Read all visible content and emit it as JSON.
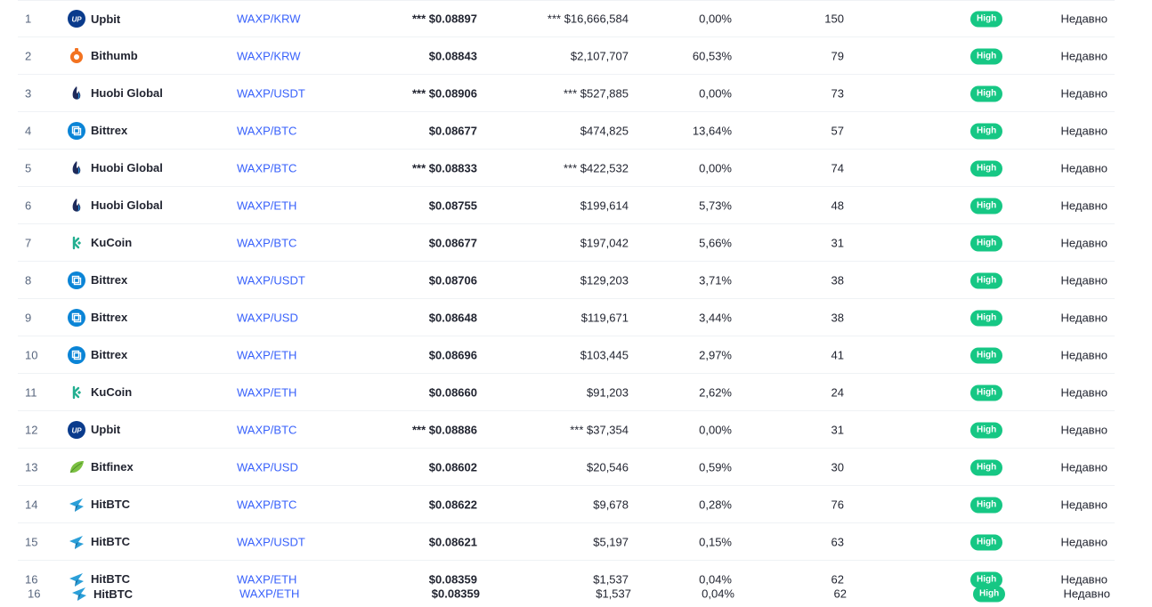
{
  "rows": [
    {
      "rank": "1",
      "exchange": "Upbit",
      "icon": "upbit-icon",
      "pair": "WAXP/KRW",
      "price": "*** $0.08897",
      "volume": "*** $16,666,584",
      "pct": "0,00%",
      "score": "150",
      "liquidity": "High",
      "updated": "Недавно"
    },
    {
      "rank": "2",
      "exchange": "Bithumb",
      "icon": "bithumb-icon",
      "pair": "WAXP/KRW",
      "price": "$0.08843",
      "volume": "$2,107,707",
      "pct": "60,53%",
      "score": "79",
      "liquidity": "High",
      "updated": "Недавно"
    },
    {
      "rank": "3",
      "exchange": "Huobi Global",
      "icon": "huobi-icon",
      "pair": "WAXP/USDT",
      "price": "*** $0.08906",
      "volume": "*** $527,885",
      "pct": "0,00%",
      "score": "73",
      "liquidity": "High",
      "updated": "Недавно"
    },
    {
      "rank": "4",
      "exchange": "Bittrex",
      "icon": "bittrex-icon",
      "pair": "WAXP/BTC",
      "price": "$0.08677",
      "volume": "$474,825",
      "pct": "13,64%",
      "score": "57",
      "liquidity": "High",
      "updated": "Недавно"
    },
    {
      "rank": "5",
      "exchange": "Huobi Global",
      "icon": "huobi-icon",
      "pair": "WAXP/BTC",
      "price": "*** $0.08833",
      "volume": "*** $422,532",
      "pct": "0,00%",
      "score": "74",
      "liquidity": "High",
      "updated": "Недавно"
    },
    {
      "rank": "6",
      "exchange": "Huobi Global",
      "icon": "huobi-icon",
      "pair": "WAXP/ETH",
      "price": "$0.08755",
      "volume": "$199,614",
      "pct": "5,73%",
      "score": "48",
      "liquidity": "High",
      "updated": "Недавно"
    },
    {
      "rank": "7",
      "exchange": "KuCoin",
      "icon": "kucoin-icon",
      "pair": "WAXP/BTC",
      "price": "$0.08677",
      "volume": "$197,042",
      "pct": "5,66%",
      "score": "31",
      "liquidity": "High",
      "updated": "Недавно"
    },
    {
      "rank": "8",
      "exchange": "Bittrex",
      "icon": "bittrex-icon",
      "pair": "WAXP/USDT",
      "price": "$0.08706",
      "volume": "$129,203",
      "pct": "3,71%",
      "score": "38",
      "liquidity": "High",
      "updated": "Недавно"
    },
    {
      "rank": "9",
      "exchange": "Bittrex",
      "icon": "bittrex-icon",
      "pair": "WAXP/USD",
      "price": "$0.08648",
      "volume": "$119,671",
      "pct": "3,44%",
      "score": "38",
      "liquidity": "High",
      "updated": "Недавно"
    },
    {
      "rank": "10",
      "exchange": "Bittrex",
      "icon": "bittrex-icon",
      "pair": "WAXP/ETH",
      "price": "$0.08696",
      "volume": "$103,445",
      "pct": "2,97%",
      "score": "41",
      "liquidity": "High",
      "updated": "Недавно"
    },
    {
      "rank": "11",
      "exchange": "KuCoin",
      "icon": "kucoin-icon",
      "pair": "WAXP/ETH",
      "price": "$0.08660",
      "volume": "$91,203",
      "pct": "2,62%",
      "score": "24",
      "liquidity": "High",
      "updated": "Недавно"
    },
    {
      "rank": "12",
      "exchange": "Upbit",
      "icon": "upbit-icon",
      "pair": "WAXP/BTC",
      "price": "*** $0.08886",
      "volume": "*** $37,354",
      "pct": "0,00%",
      "score": "31",
      "liquidity": "High",
      "updated": "Недавно"
    },
    {
      "rank": "13",
      "exchange": "Bitfinex",
      "icon": "bitfinex-icon",
      "pair": "WAXP/USD",
      "price": "$0.08602",
      "volume": "$20,546",
      "pct": "0,59%",
      "score": "30",
      "liquidity": "High",
      "updated": "Недавно"
    },
    {
      "rank": "14",
      "exchange": "HitBTC",
      "icon": "hitbtc-icon",
      "pair": "WAXP/BTC",
      "price": "$0.08622",
      "volume": "$9,678",
      "pct": "0,28%",
      "score": "76",
      "liquidity": "High",
      "updated": "Недавно"
    },
    {
      "rank": "15",
      "exchange": "HitBTC",
      "icon": "hitbtc-icon",
      "pair": "WAXP/USDT",
      "price": "$0.08621",
      "volume": "$5,197",
      "pct": "0,15%",
      "score": "63",
      "liquidity": "High",
      "updated": "Недавно"
    },
    {
      "rank": "16",
      "exchange": "HitBTC",
      "icon": "hitbtc-icon",
      "pair": "WAXP/ETH",
      "price": "$0.08359",
      "volume": "$1,537",
      "pct": "0,04%",
      "score": "62",
      "liquidity": "High",
      "updated": "Недавно"
    }
  ],
  "extra_row": {
    "rank": "16",
    "exchange": "HitBTC",
    "icon": "hitbtc-icon",
    "pair": "WAXP/ETH",
    "price": "$0.08359",
    "volume": "$1,537",
    "pct": "0,04%",
    "score": "62",
    "liquidity": "High",
    "updated": "Недавно"
  },
  "colors": {
    "accent": "#3861fb",
    "high_badge": "#16c784",
    "row_border": "#eff2f5"
  }
}
